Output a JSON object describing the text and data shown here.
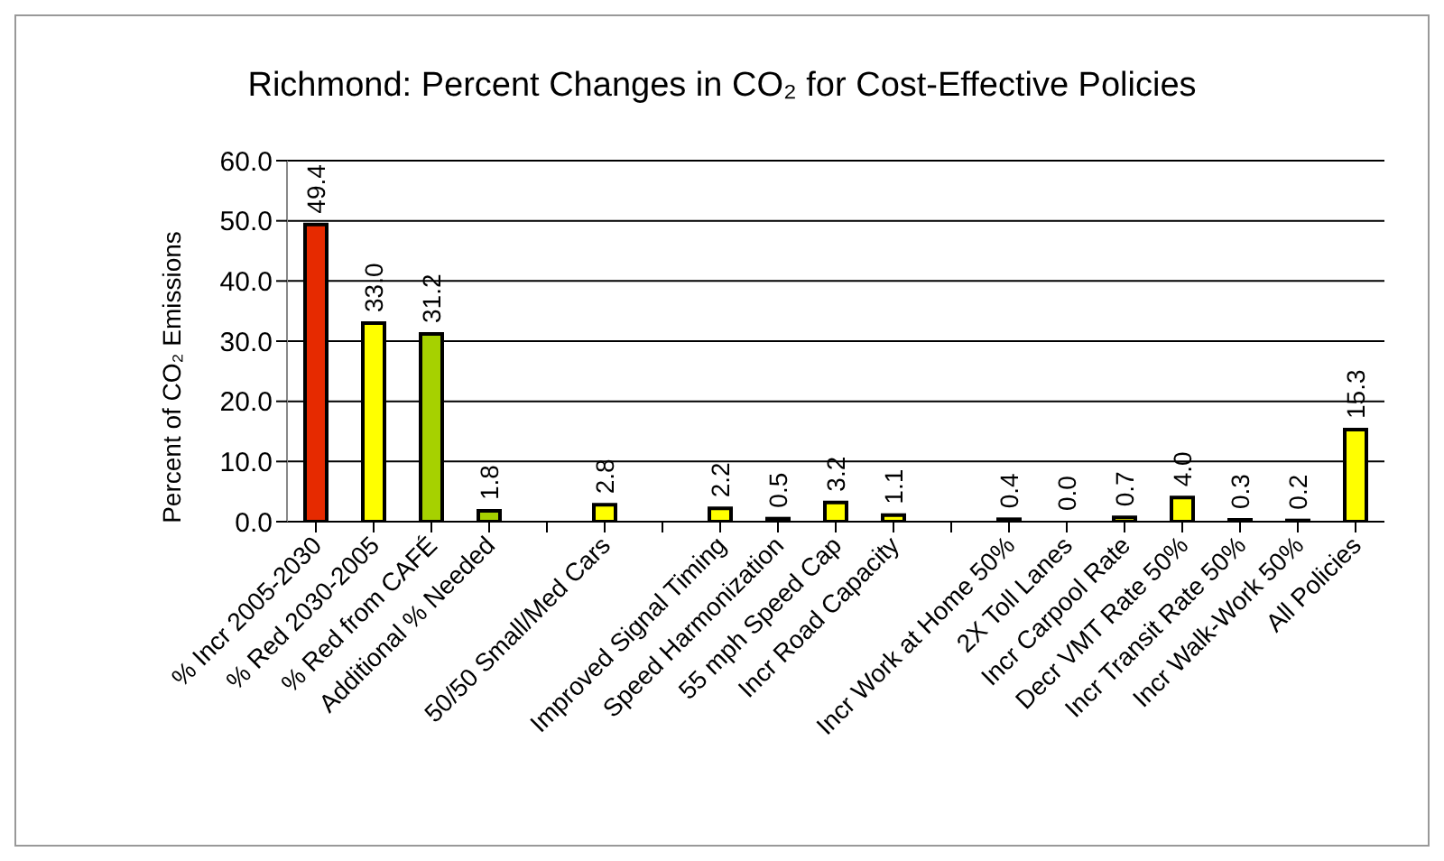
{
  "chart_data": {
    "type": "bar",
    "title": "Richmond: Percent Changes in CO₂ for Cost-Effective Policies",
    "ylabel": "Percent of CO₂ Emissions",
    "categories": [
      "% Incr 2005-2030",
      "% Red 2030-2005",
      "% Red from CAFÉ",
      "Additional % Needed",
      null,
      "50/50  Small/Med Cars",
      null,
      "Improved Signal Timing",
      "Speed Harmonization",
      "55 mph Speed Cap",
      "Incr Road Capacity",
      null,
      "Incr Work at Home 50%",
      "2X Toll Lanes",
      "Incr Carpool Rate",
      "Decr VMT Rate 50%",
      "Incr Transit Rate 50%",
      "Incr Walk-Work 50%",
      "All Policies"
    ],
    "values": [
      49.4,
      33.0,
      31.2,
      1.8,
      null,
      2.8,
      null,
      2.2,
      0.5,
      3.2,
      1.1,
      null,
      0.4,
      0.0,
      0.7,
      4.0,
      0.3,
      0.2,
      15.3
    ],
    "value_labels": [
      "49.4",
      "33.0",
      "31.2",
      "1.8",
      null,
      "2.8",
      null,
      "2.2",
      "0.5",
      "3.2",
      "1.1",
      null,
      "0.4",
      "0.0",
      "0.7",
      "4.0",
      "0.3",
      "0.2",
      "15.3"
    ],
    "colors": [
      "#e62a00",
      "#ffff00",
      "#a6d100",
      "#a6d100",
      null,
      "#ffff00",
      null,
      "#ffff00",
      "#ffff00",
      "#ffff00",
      "#ffff00",
      null,
      "#ffff00",
      "#ffff00",
      "#ffff00",
      "#ffff00",
      "#ffff00",
      "#ffff00",
      "#ffff00"
    ],
    "ylim": [
      0,
      60
    ],
    "yticks": [
      {
        "value": 0,
        "label": "0.0"
      },
      {
        "value": 10,
        "label": "10.0"
      },
      {
        "value": 20,
        "label": "20.0"
      },
      {
        "value": 30,
        "label": "30.0"
      },
      {
        "value": 40,
        "label": "40.0"
      },
      {
        "value": 50,
        "label": "50.0"
      },
      {
        "value": 60,
        "label": "60.0"
      }
    ],
    "grid": "y"
  }
}
